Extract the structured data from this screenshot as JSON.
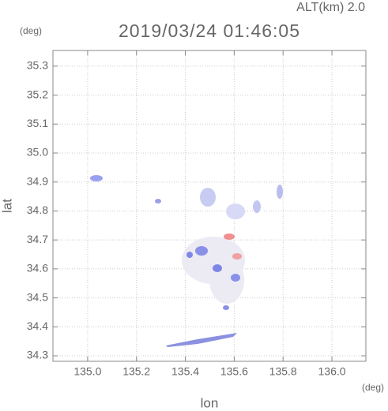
{
  "chart_data": {
    "type": "map",
    "title": "2019/03/24 01:46:05",
    "subtitle": "ALT(km) 2.0",
    "x_label": "lon",
    "y_label": "lat",
    "x_unit": "(deg)",
    "y_unit": "(deg)",
    "xlim": [
      134.858,
      136.139
    ],
    "ylim": [
      34.281,
      35.354
    ],
    "xticks": [
      {
        "value": 135.0,
        "label": "135.0"
      },
      135.2,
      135.4,
      135.6,
      135.8,
      {
        "value": 136.0,
        "label": "136.0"
      }
    ],
    "yticks": [
      34.3,
      34.4,
      34.5,
      34.6,
      34.7,
      34.8,
      34.9,
      {
        "value": 35.0,
        "label": "35.0"
      },
      35.1,
      35.2,
      35.3
    ],
    "grid": true
  }
}
